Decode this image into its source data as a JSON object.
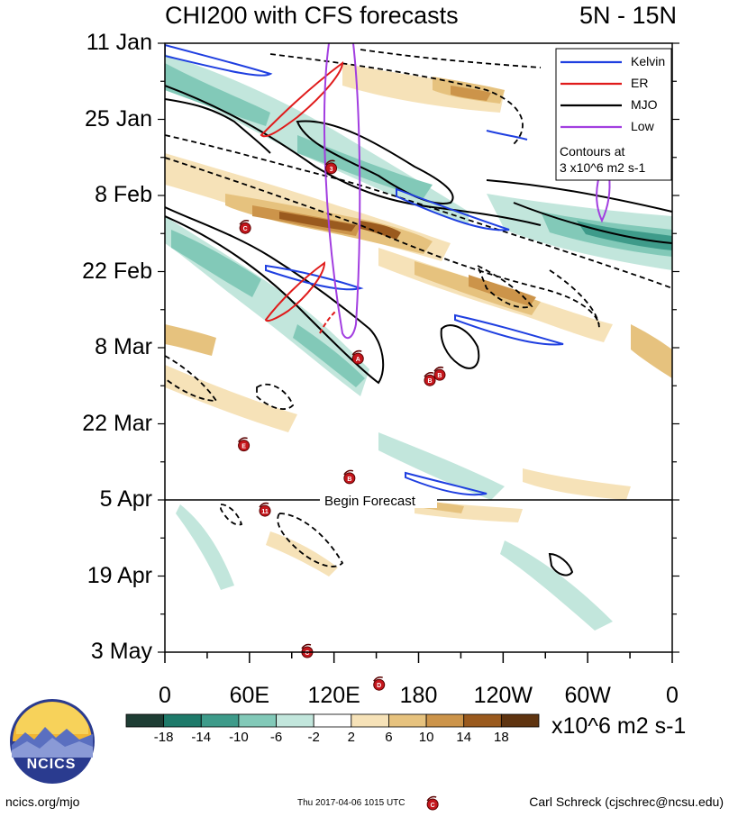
{
  "chart_data": {
    "type": "heatmap",
    "title": "CHI200 with CFS forecasts",
    "region": "5N - 15N",
    "y_ticks": [
      "11 Jan",
      "25 Jan",
      "8 Feb",
      "22 Feb",
      "8 Mar",
      "22 Mar",
      "5 Apr",
      "19 Apr",
      "3 May"
    ],
    "x_ticks": [
      "0",
      "60E",
      "120E",
      "180",
      "120W",
      "60W",
      "0"
    ],
    "xlim_deg": [
      0,
      360
    ],
    "begin_forecast_label": "Begin Forecast",
    "colorbar": {
      "levels": [
        -18,
        -14,
        -10,
        -6,
        -2,
        2,
        6,
        10,
        14,
        18
      ],
      "colors": [
        "#1e3d34",
        "#1e7a6a",
        "#3e9b8a",
        "#82c9b8",
        "#c2e6dc",
        "#ffffff",
        "#f6e2b8",
        "#e6c27e",
        "#cc944a",
        "#9a5a1e",
        "#5f3410"
      ],
      "units": "x10^6 m2 s-1"
    },
    "legend": [
      {
        "name": "Kelvin",
        "color": "#1f3fe0"
      },
      {
        "name": "ER",
        "color": "#e01b1b"
      },
      {
        "name": "MJO",
        "color": "#000000"
      },
      {
        "name": "Low",
        "color": "#a23ee0"
      }
    ],
    "contour_note_line1": "Contours at",
    "contour_note_line2": "3 x10^6 m2 s-1",
    "storms": [
      {
        "label": "3",
        "lon": 118,
        "day": 23
      },
      {
        "label": "C",
        "lon": 57,
        "day": 34
      },
      {
        "label": "A",
        "lon": 137,
        "day": 58
      },
      {
        "label": "B",
        "lon": 188,
        "day": 62
      },
      {
        "label": "B",
        "lon": 195,
        "day": 61
      },
      {
        "label": "E",
        "lon": 56,
        "day": 74
      },
      {
        "label": "B",
        "lon": 131,
        "day": 80
      },
      {
        "label": "11",
        "lon": 71,
        "day": 86
      },
      {
        "label": "C",
        "lon": 101,
        "day": 112
      },
      {
        "label": "D",
        "lon": 152,
        "day": 118
      },
      {
        "label": "C",
        "lon": 190,
        "day": 140
      }
    ]
  },
  "footer": {
    "left": "ncics.org/mjo",
    "timestamp": "Thu 2017-04-06 1015 UTC",
    "right": "Carl Schreck (cjschrec@ncsu.edu)"
  },
  "logo": {
    "text": "NCICS"
  }
}
